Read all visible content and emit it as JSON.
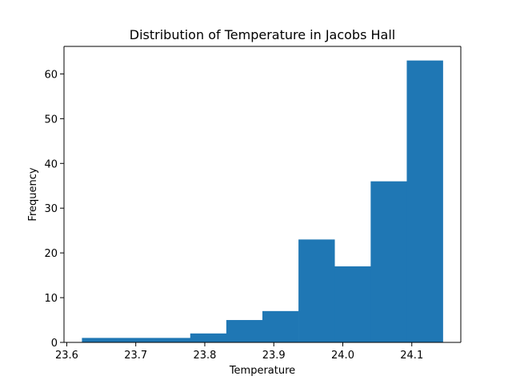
{
  "chart_data": {
    "type": "bar",
    "title": "Distribution of Temperature in Jacobs Hall",
    "xlabel": "Temperature",
    "ylabel": "Frequency",
    "bin_edges": [
      23.622,
      23.6743,
      23.7266,
      23.7789,
      23.8312,
      23.8835,
      23.9358,
      23.9881,
      24.0404,
      24.0927,
      24.145
    ],
    "counts": [
      1,
      1,
      1,
      2,
      5,
      7,
      23,
      17,
      36,
      63
    ],
    "xlim": [
      23.596,
      24.171
    ],
    "ylim": [
      0,
      66.15
    ],
    "xticks": [
      23.6,
      23.7,
      23.8,
      23.9,
      24.0,
      24.1
    ],
    "xtick_labels": [
      "23.6",
      "23.7",
      "23.8",
      "23.9",
      "24.0",
      "24.1"
    ],
    "yticks": [
      0,
      10,
      20,
      30,
      40,
      50,
      60
    ],
    "ytick_labels": [
      "0",
      "10",
      "20",
      "30",
      "40",
      "50",
      "60"
    ],
    "bar_color": "#1f77b4",
    "grid": false,
    "legend": "none"
  }
}
